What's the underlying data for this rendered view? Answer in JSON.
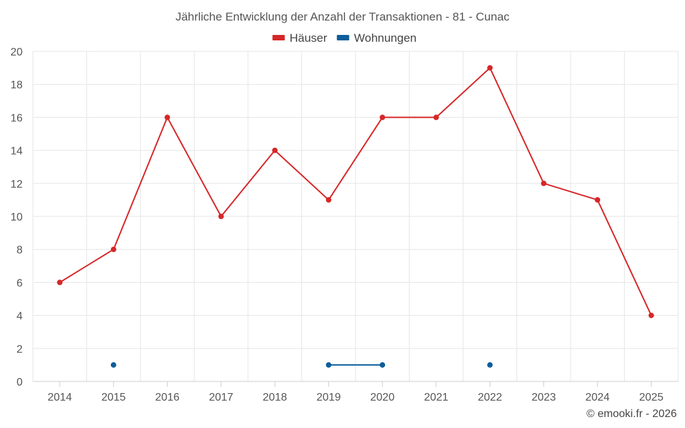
{
  "chart_data": {
    "type": "line",
    "title": "Jährliche Entwicklung der Anzahl der Transaktionen - 81 - Cunac",
    "categories": [
      "2014",
      "2015",
      "2016",
      "2017",
      "2018",
      "2019",
      "2020",
      "2021",
      "2022",
      "2023",
      "2024",
      "2025"
    ],
    "series": [
      {
        "name": "Häuser",
        "color": "#d62728",
        "values": [
          6,
          8,
          16,
          10,
          14,
          11,
          16,
          16,
          19,
          12,
          11,
          4
        ]
      },
      {
        "name": "Wohnungen",
        "color": "#0b5e9a",
        "values": [
          null,
          1,
          null,
          null,
          null,
          1,
          1,
          null,
          1,
          null,
          null,
          null
        ]
      }
    ],
    "ylim": [
      0,
      20
    ],
    "yticks": [
      0,
      2,
      4,
      6,
      8,
      10,
      12,
      14,
      16,
      18,
      20
    ],
    "grid": true,
    "legend": "top-center",
    "credit": "© emooki.fr - 2026"
  }
}
